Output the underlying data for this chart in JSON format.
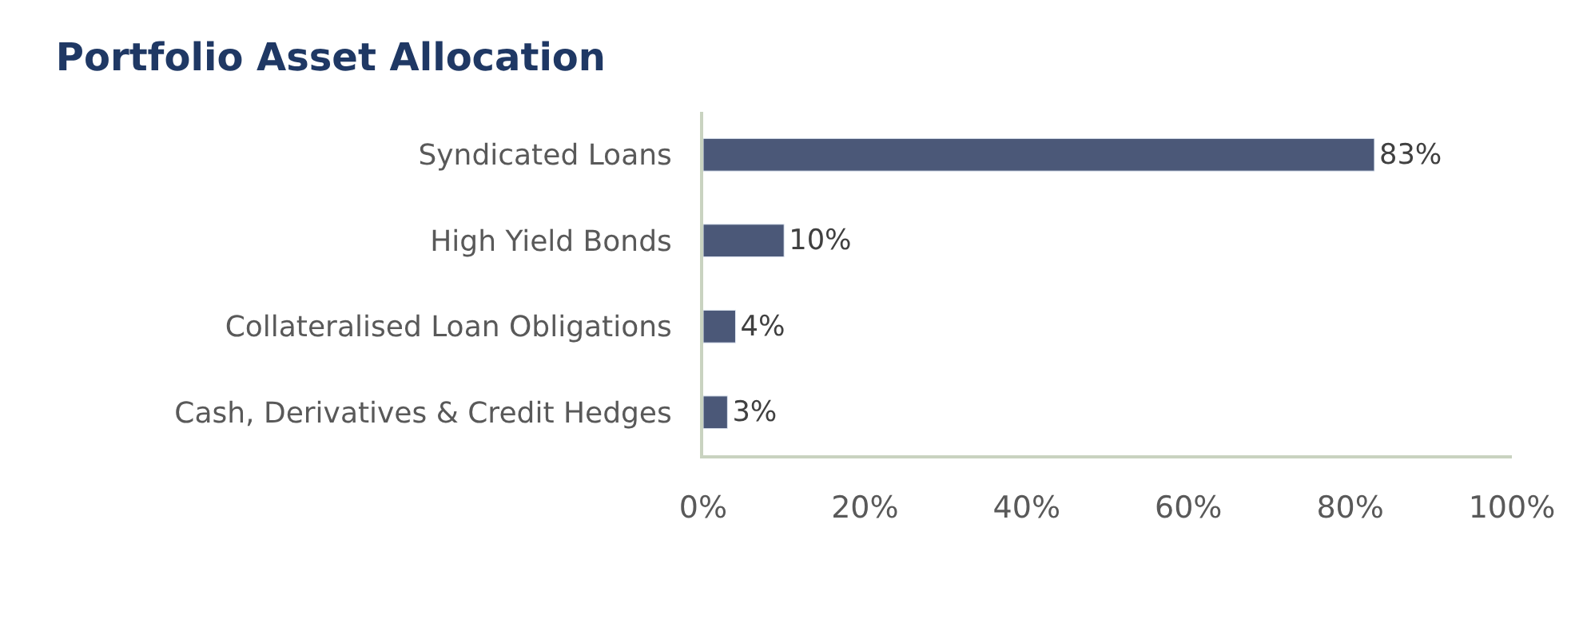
{
  "chart_data": {
    "type": "bar",
    "orientation": "horizontal",
    "title": "Portfolio Asset Allocation",
    "categories": [
      "Syndicated Loans",
      "High Yield Bonds",
      "Collateralised Loan Obligations",
      "Cash, Derivatives & Credit Hedges"
    ],
    "values": [
      83,
      10,
      4,
      3
    ],
    "color": "#4b5878",
    "value_labels": [
      "83%",
      "10%",
      "4%",
      "3%"
    ],
    "xlim": [
      0,
      100
    ],
    "xticks": [
      {
        "value": 0,
        "label": "0%"
      },
      {
        "value": 20,
        "label": "20%"
      },
      {
        "value": 40,
        "label": "40%"
      },
      {
        "value": 60,
        "label": "60%"
      },
      {
        "value": 80,
        "label": "80%"
      },
      {
        "value": 100,
        "label": "100%"
      }
    ],
    "legend": false
  }
}
